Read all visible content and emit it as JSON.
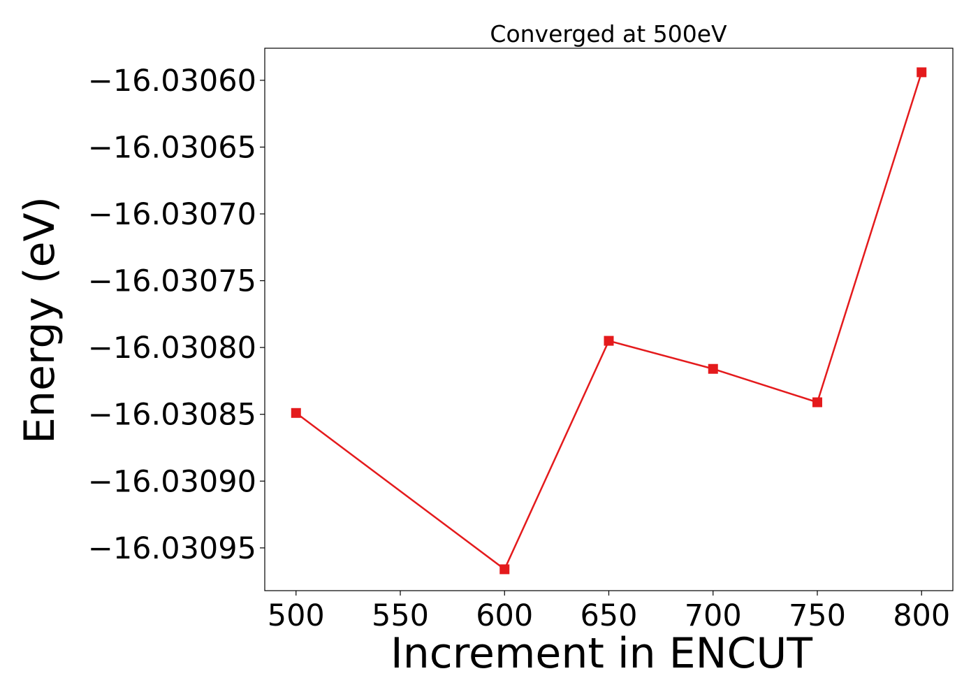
{
  "chart_data": {
    "type": "line",
    "title": "Converged at 500eV",
    "xlabel": "Increment in ENCUT",
    "ylabel": "Energy (eV)",
    "x": [
      500,
      600,
      650,
      700,
      750,
      800
    ],
    "series": [
      {
        "values": [
          -16.030849,
          -16.030966,
          -16.030795,
          -16.030816,
          -16.030841,
          -16.030594
        ],
        "color": "#e41a1c",
        "marker": "square"
      }
    ],
    "xlim": [
      485,
      815
    ],
    "ylim": [
      -16.030982,
      -16.030576
    ],
    "xticks": [
      500,
      550,
      600,
      650,
      700,
      750,
      800
    ],
    "xtick_labels": [
      "500",
      "550",
      "600",
      "650",
      "700",
      "750",
      "800"
    ],
    "yticks": [
      -16.0306,
      -16.03065,
      -16.0307,
      -16.03075,
      -16.0308,
      -16.03085,
      -16.0309,
      -16.03095
    ],
    "ytick_labels": [
      "−16.03060",
      "−16.03065",
      "−16.03070",
      "−16.03075",
      "−16.03080",
      "−16.03085",
      "−16.03090",
      "−16.03095"
    ],
    "grid": false,
    "legend": "none"
  }
}
